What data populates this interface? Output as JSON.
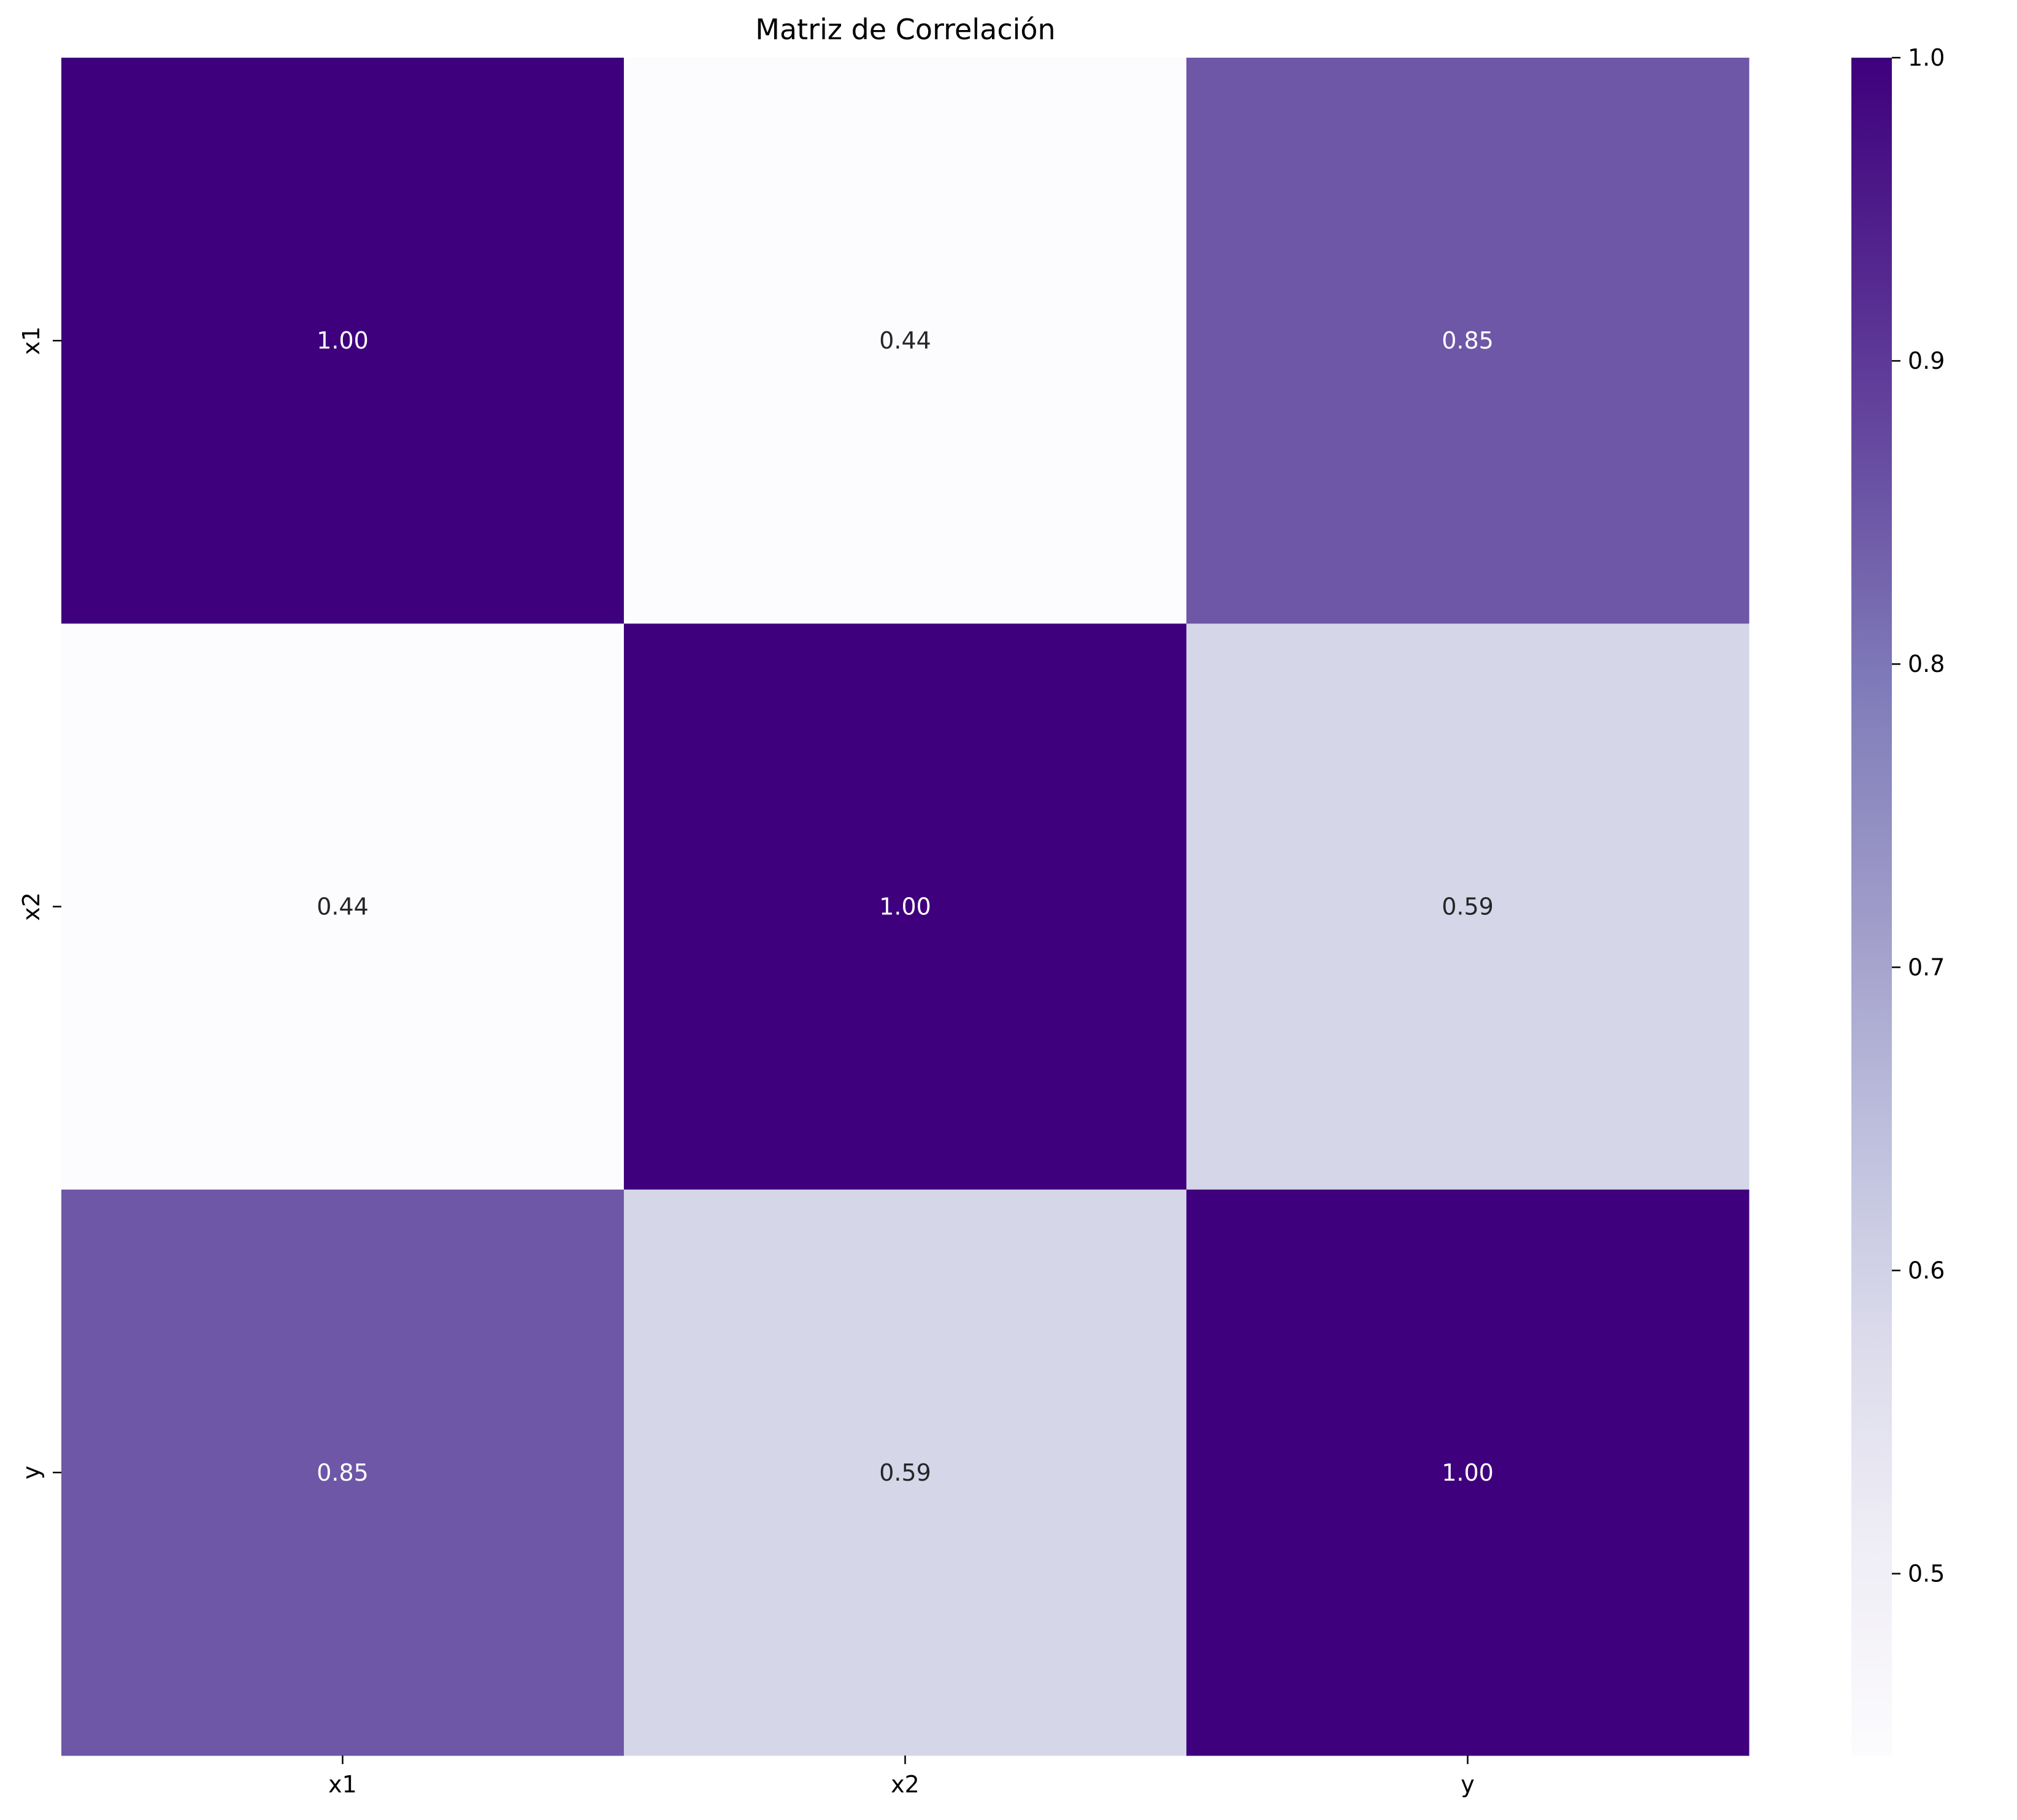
{
  "chart_data": {
    "type": "heatmap",
    "title": "Matriz de Correlación",
    "x_categories": [
      "x1",
      "x2",
      "y"
    ],
    "y_categories": [
      "x1",
      "x2",
      "y"
    ],
    "values": [
      [
        1.0,
        0.44,
        0.85
      ],
      [
        0.44,
        1.0,
        0.59
      ],
      [
        0.85,
        0.59,
        1.0
      ]
    ],
    "annotations": [
      [
        "1.00",
        "0.44",
        "0.85"
      ],
      [
        "0.44",
        "1.00",
        "0.59"
      ],
      [
        "0.85",
        "0.59",
        "1.00"
      ]
    ],
    "colormap": "Purples",
    "vmin": 0.44,
    "vmax": 1.0,
    "colorbar": {
      "ticks": [
        0.5,
        0.6,
        0.7,
        0.8,
        0.9,
        1.0
      ],
      "tick_labels": [
        "0.5",
        "0.6",
        "0.7",
        "0.8",
        "0.9",
        "1.0"
      ],
      "placement": "right"
    },
    "colors": {
      "low": "#fcfbfd",
      "high": "#3f007d",
      "annotation_dark_bg": "#ffffff",
      "annotation_light_bg": "#262626"
    }
  }
}
